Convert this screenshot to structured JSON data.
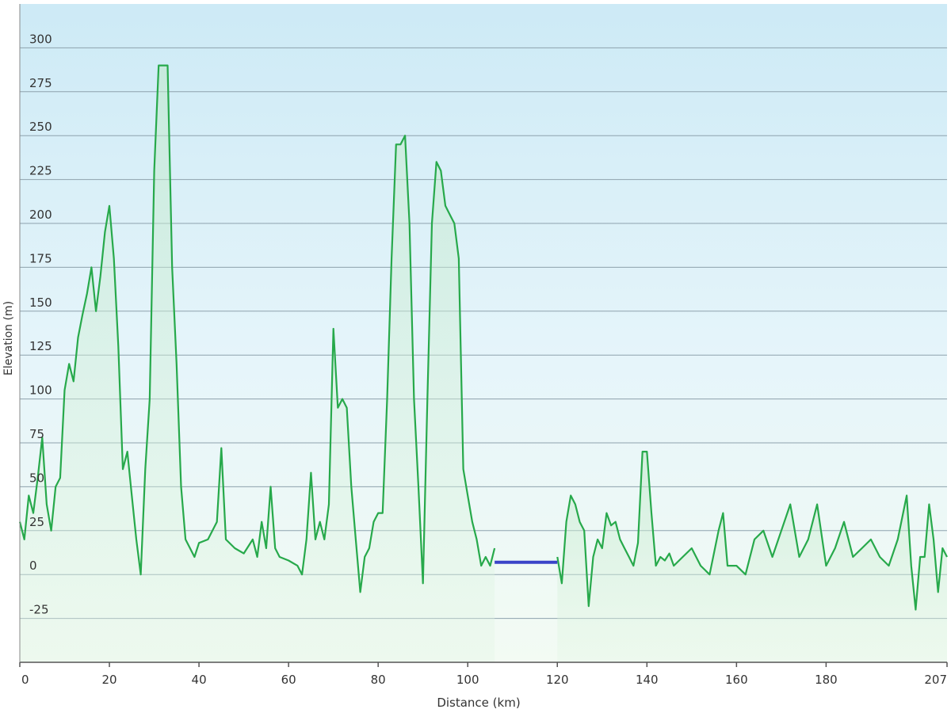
{
  "colors": {
    "elevation_line": "#27a94b",
    "ferry_segment": "#3a44c8",
    "plot_bg_top": "#cdeaf6",
    "plot_bg_bottom": "#f3fbf3",
    "grid": "#8ea2ad"
  },
  "chart_data": {
    "type": "area",
    "xlabel": "Distance  (km)",
    "ylabel": "Elevation (m)",
    "xlim": [
      0,
      207
    ],
    "ylim": [
      -50,
      325
    ],
    "x_ticks": [
      0,
      20,
      40,
      60,
      80,
      100,
      120,
      140,
      160,
      180,
      207
    ],
    "y_ticks": [
      -25,
      0,
      25,
      50,
      75,
      100,
      125,
      150,
      175,
      200,
      225,
      250,
      275,
      300
    ],
    "grid": true,
    "series": [
      {
        "x": [
          0,
          1,
          2,
          3,
          4,
          5,
          6,
          7,
          8,
          9,
          10,
          11,
          12,
          13,
          14,
          15,
          16,
          17,
          18,
          19,
          20,
          21,
          22,
          23,
          24,
          25,
          26,
          27,
          28,
          29,
          30,
          31,
          32,
          33,
          34,
          35,
          36,
          37,
          38,
          39,
          40,
          42,
          44,
          45,
          46,
          48,
          50,
          52,
          53,
          54,
          55,
          56,
          57,
          58,
          60,
          62,
          63,
          64,
          65,
          66,
          67,
          68,
          69,
          70,
          71,
          72,
          73,
          74,
          75,
          76,
          77,
          78,
          79,
          80,
          81,
          82,
          83,
          84,
          85,
          86,
          87,
          88,
          89,
          90,
          91,
          92,
          93,
          94,
          95,
          96,
          97,
          98,
          99,
          100,
          101,
          102,
          103,
          104,
          105,
          106
        ],
        "y": [
          30,
          20,
          45,
          35,
          55,
          78,
          40,
          25,
          50,
          55,
          105,
          120,
          110,
          135,
          148,
          160,
          175,
          150,
          170,
          195,
          210,
          180,
          130,
          60,
          70,
          45,
          20,
          0,
          60,
          100,
          230,
          290,
          290,
          290,
          175,
          120,
          50,
          20,
          15,
          10,
          18,
          20,
          30,
          72,
          20,
          15,
          12,
          20,
          10,
          30,
          15,
          50,
          15,
          10,
          8,
          5,
          0,
          20,
          58,
          20,
          30,
          20,
          40,
          140,
          95,
          100,
          95,
          50,
          20,
          -10,
          10,
          15,
          30,
          35,
          35,
          100,
          180,
          245,
          245,
          250,
          200,
          100,
          50,
          -5,
          100,
          200,
          235,
          230,
          210,
          205,
          200,
          180,
          60,
          45,
          30,
          20,
          5,
          10,
          5,
          15
        ]
      },
      {
        "x": [
          106,
          120
        ],
        "y": [
          7,
          7
        ]
      },
      {
        "x": [
          120,
          121,
          122,
          123,
          124,
          125,
          126,
          127,
          128,
          129,
          130,
          131,
          132,
          133,
          134,
          135,
          136,
          137,
          138,
          139,
          140,
          141,
          142,
          143,
          144,
          145,
          146,
          148,
          150,
          152,
          154,
          156,
          157,
          158,
          160,
          162,
          164,
          166,
          168,
          170,
          172,
          174,
          176,
          178,
          180,
          182,
          184,
          186,
          188,
          190,
          192,
          194,
          196,
          198,
          199,
          200,
          201,
          202,
          203,
          204,
          205,
          206,
          207
        ],
        "y": [
          10,
          -5,
          30,
          45,
          40,
          30,
          25,
          -18,
          10,
          20,
          15,
          35,
          28,
          30,
          20,
          15,
          10,
          5,
          18,
          70,
          70,
          35,
          5,
          10,
          8,
          12,
          5,
          10,
          15,
          5,
          0,
          25,
          35,
          5,
          5,
          0,
          20,
          25,
          10,
          25,
          40,
          10,
          20,
          40,
          5,
          15,
          30,
          10,
          15,
          20,
          10,
          5,
          20,
          45,
          5,
          -20,
          10,
          10,
          40,
          20,
          -10,
          15,
          10
        ]
      }
    ]
  }
}
